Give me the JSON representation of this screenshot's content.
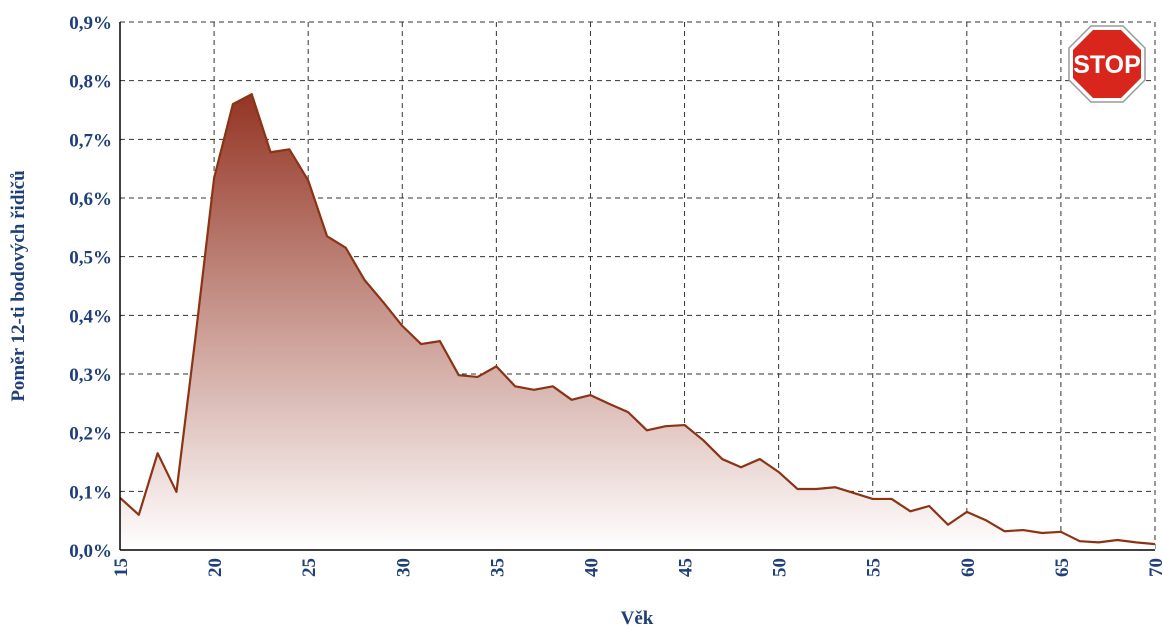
{
  "chart_data": {
    "type": "area",
    "ylabel": "Poměr 12-ti bodových řidičů",
    "xlabel": "Věk",
    "annotation": "STOP",
    "x": [
      15,
      16,
      17,
      18,
      19,
      20,
      21,
      22,
      23,
      24,
      25,
      26,
      27,
      28,
      29,
      30,
      31,
      32,
      33,
      34,
      35,
      36,
      37,
      38,
      39,
      40,
      41,
      42,
      43,
      44,
      45,
      46,
      47,
      48,
      49,
      50,
      51,
      52,
      53,
      54,
      55,
      56,
      57,
      58,
      59,
      60,
      61,
      62,
      63,
      64,
      65,
      66,
      67,
      68,
      69,
      70
    ],
    "series": [
      {
        "color": "#8b3315",
        "values": [
          0.089,
          0.06,
          0.165,
          0.099,
          0.36,
          0.634,
          0.76,
          0.777,
          0.678,
          0.683,
          0.63,
          0.535,
          0.515,
          0.46,
          0.422,
          0.382,
          0.351,
          0.356,
          0.298,
          0.295,
          0.313,
          0.279,
          0.273,
          0.279,
          0.256,
          0.264,
          0.249,
          0.235,
          0.204,
          0.211,
          0.213,
          0.187,
          0.155,
          0.141,
          0.155,
          0.133,
          0.104,
          0.104,
          0.107,
          0.097,
          0.087,
          0.087,
          0.066,
          0.075,
          0.043,
          0.065,
          0.051,
          0.032,
          0.034,
          0.029,
          0.031,
          0.015,
          0.013,
          0.017,
          0.013,
          0.01
        ]
      }
    ],
    "xlim": [
      15,
      70
    ],
    "xticks": [
      15,
      20,
      25,
      30,
      35,
      40,
      45,
      50,
      55,
      60,
      65,
      70
    ],
    "ylim": [
      0,
      0.9
    ],
    "yticks": [
      {
        "value": 0,
        "label": "0,0%"
      },
      {
        "value": 0.1,
        "label": "0,1%"
      },
      {
        "value": 0.2,
        "label": "0,2%"
      },
      {
        "value": 0.3,
        "label": "0,3%"
      },
      {
        "value": 0.4,
        "label": "0,4%"
      },
      {
        "value": 0.5,
        "label": "0,5%"
      },
      {
        "value": 0.6,
        "label": "0,6%"
      },
      {
        "value": 0.7,
        "label": "0,7%"
      },
      {
        "value": 0.8,
        "label": "0,8%"
      },
      {
        "value": 0.9,
        "label": "0,9%"
      }
    ],
    "grid": true
  }
}
